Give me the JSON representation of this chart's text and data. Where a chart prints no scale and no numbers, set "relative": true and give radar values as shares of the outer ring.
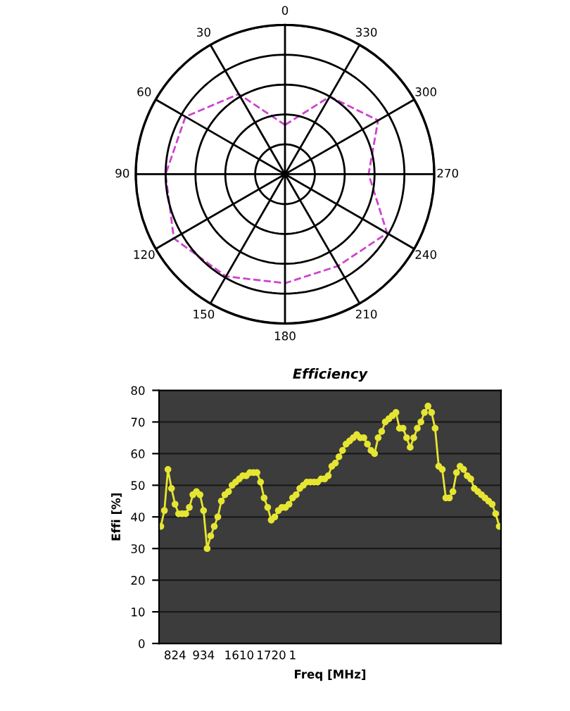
{
  "chart_data": [
    {
      "type": "radar",
      "relative": true,
      "grid": true,
      "line_style": "dashed",
      "categories": [
        "0",
        "330",
        "300",
        "270",
        "240",
        "210",
        "180",
        "150",
        "120",
        "90",
        "60",
        "30"
      ],
      "series": [
        {
          "color": "#cc44cc",
          "values": [
            0.33,
            0.6,
            0.72,
            0.56,
            0.79,
            0.71,
            0.73,
            0.79,
            0.86,
            0.8,
            0.77,
            0.62
          ]
        }
      ]
    },
    {
      "type": "line",
      "title": "Efficiency",
      "xlabel": "Freq [MHz]",
      "ylabel": "Effi [%]",
      "grid": "y",
      "marker": "circle",
      "categories": [
        null,
        null,
        null,
        null,
        "824",
        null,
        null,
        null,
        null,
        null,
        null,
        null,
        "934",
        null,
        null,
        null,
        null,
        null,
        null,
        null,
        null,
        null,
        "1610",
        null,
        null,
        null,
        null,
        null,
        null,
        null,
        null,
        "1720",
        null,
        null,
        null,
        null,
        null,
        "1",
        null,
        null,
        null,
        null,
        null,
        null,
        null,
        null,
        null,
        null,
        null,
        null,
        null,
        null,
        null,
        null,
        null,
        null,
        null,
        null,
        null,
        null,
        null,
        null,
        null,
        null,
        null,
        null,
        null,
        null,
        null,
        null,
        null,
        null,
        null,
        null,
        null,
        null,
        null,
        null,
        null,
        null,
        null,
        null,
        null,
        null,
        null,
        null,
        null,
        null,
        null,
        null,
        null,
        null,
        null,
        null,
        null,
        null
      ],
      "series": [
        {
          "color": "#e6e632",
          "values": [
            37,
            42,
            55,
            49,
            44,
            41,
            41,
            41,
            43,
            47,
            48,
            47,
            42,
            30,
            34,
            37,
            40,
            45,
            47,
            48,
            50,
            51,
            52,
            53,
            53,
            54,
            54,
            54,
            51,
            46,
            43,
            39,
            40,
            42,
            43,
            43,
            44,
            46,
            47,
            49,
            50,
            51,
            51,
            51,
            51,
            52,
            52,
            53,
            56,
            57,
            59,
            61,
            63,
            64,
            65,
            66,
            65,
            65,
            63,
            61,
            60,
            65,
            67,
            70,
            71,
            72,
            73,
            68,
            68,
            65,
            62,
            65,
            68,
            70,
            73,
            75,
            73,
            68,
            56,
            55,
            46,
            46,
            48,
            54,
            56,
            55,
            53,
            52,
            49,
            48,
            47,
            46,
            45,
            44,
            41,
            37
          ]
        }
      ],
      "ylim": [
        0,
        80
      ],
      "yticks": [
        0,
        10,
        20,
        30,
        40,
        50,
        60,
        70,
        80
      ]
    }
  ]
}
